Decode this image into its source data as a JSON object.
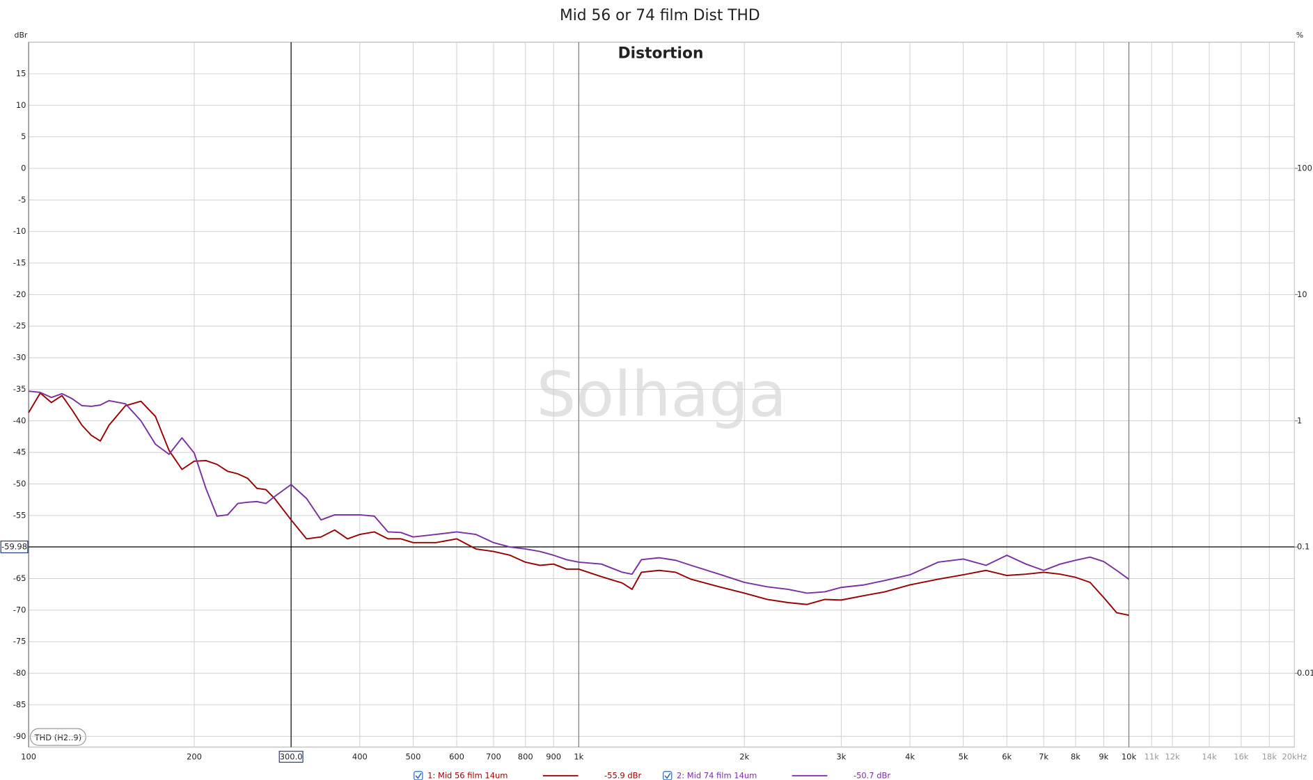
{
  "chart_data": {
    "type": "line",
    "title": "Mid 56 or 74 film Dist THD",
    "subtitle": "Distortion",
    "watermark": "Solhaga",
    "measurement_label": "THD (H2..9)",
    "ylabel": "dBr",
    "y2label": "%",
    "xscale": "log",
    "y2scale": "log",
    "grid": true,
    "xlim": [
      100,
      20000
    ],
    "ylim": [
      -91.7,
      20
    ],
    "y2lim": [
      0.0026,
      1000
    ],
    "xticks": [
      {
        "value": 100,
        "label": "100"
      },
      {
        "value": 200,
        "label": "200"
      },
      {
        "value": 400,
        "label": "400"
      },
      {
        "value": 500,
        "label": "500"
      },
      {
        "value": 600,
        "label": "600"
      },
      {
        "value": 700,
        "label": "700"
      },
      {
        "value": 800,
        "label": "800"
      },
      {
        "value": 900,
        "label": "900"
      },
      {
        "value": 1000,
        "label": "1k"
      },
      {
        "value": 2000,
        "label": "2k"
      },
      {
        "value": 3000,
        "label": "3k"
      },
      {
        "value": 4000,
        "label": "4k"
      },
      {
        "value": 5000,
        "label": "5k"
      },
      {
        "value": 6000,
        "label": "6k"
      },
      {
        "value": 7000,
        "label": "7k"
      },
      {
        "value": 8000,
        "label": "8k"
      },
      {
        "value": 9000,
        "label": "9k"
      },
      {
        "value": 10000,
        "label": "10k"
      },
      {
        "value": 11000,
        "label": "11k"
      },
      {
        "value": 12000,
        "label": "12k"
      },
      {
        "value": 14000,
        "label": "14k"
      },
      {
        "value": 16000,
        "label": "16k"
      },
      {
        "value": 18000,
        "label": "18k"
      },
      {
        "value": 20000,
        "label": "20kHz"
      }
    ],
    "yticks": [
      15,
      10,
      5,
      0,
      -5,
      -10,
      -15,
      -20,
      -25,
      -30,
      -35,
      -40,
      -45,
      -50,
      -55,
      -60,
      -65,
      -70,
      -75,
      -80,
      -85,
      -90
    ],
    "y2ticks": [
      100,
      10,
      1,
      0.1,
      0.01
    ],
    "cursor": {
      "x": {
        "value": 300,
        "label": "300.0"
      },
      "y": -59.98
    },
    "x": [
      100,
      105,
      110,
      115,
      120,
      125,
      130,
      135,
      140,
      150,
      160,
      170,
      180,
      190,
      200,
      210,
      220,
      230,
      240,
      250,
      260,
      270,
      280,
      300,
      320,
      340,
      360,
      380,
      400,
      425,
      450,
      475,
      500,
      550,
      600,
      650,
      700,
      750,
      800,
      850,
      900,
      950,
      1000,
      1100,
      1200,
      1250,
      1300,
      1400,
      1500,
      1600,
      1800,
      2000,
      2200,
      2400,
      2600,
      2800,
      3000,
      3300,
      3600,
      4000,
      4500,
      5000,
      5500,
      6000,
      6500,
      7000,
      7500,
      8000,
      8500,
      9000,
      9500,
      10000
    ],
    "series": [
      {
        "name": "1: Mid 56 film 14um",
        "color": "#990000",
        "cursor_value": -55.9,
        "cursor_value_label": "-55.9 dBr",
        "values": [
          -38.7,
          -35.6,
          -37.1,
          -36,
          -38.3,
          -40.7,
          -42.3,
          -43.2,
          -40.7,
          -37.6,
          -36.9,
          -39.3,
          -44.7,
          -47.7,
          -46.4,
          -46.3,
          -46.9,
          -48,
          -48.4,
          -49.1,
          -50.7,
          -50.9,
          -52.3,
          -55.7,
          -58.7,
          -58.4,
          -57.3,
          -58.7,
          -58,
          -57.6,
          -58.7,
          -58.7,
          -59.3,
          -59.3,
          -58.7,
          -60.3,
          -60.7,
          -61.3,
          -62.4,
          -62.9,
          -62.7,
          -63.5,
          -63.5,
          -64.7,
          -65.7,
          -66.7,
          -64,
          -63.7,
          -64,
          -65.1,
          -66.3,
          -67.3,
          -68.3,
          -68.8,
          -69.1,
          -68.3,
          -68.4,
          -67.7,
          -67.1,
          -66,
          -65.1,
          -64.4,
          -63.7,
          -64.5,
          -64.3,
          -64,
          -64.3,
          -64.8,
          -65.6,
          -68,
          -70.4,
          -70.8
        ]
      },
      {
        "name": "2: Mid 74 film 14um",
        "color": "#7b2fa0",
        "cursor_value": -50.7,
        "cursor_value_label": "-50.7 dBr",
        "values": [
          -35.3,
          -35.5,
          -36.3,
          -35.7,
          -36.5,
          -37.6,
          -37.7,
          -37.5,
          -36.8,
          -37.3,
          -40,
          -43.7,
          -45.3,
          -42.7,
          -45.1,
          -50.7,
          -55.1,
          -54.9,
          -53.1,
          -52.9,
          -52.8,
          -53.1,
          -52,
          -50.1,
          -52.3,
          -55.7,
          -54.9,
          -54.9,
          -54.9,
          -55.1,
          -57.6,
          -57.7,
          -58.4,
          -58,
          -57.6,
          -58,
          -59.3,
          -60,
          -60.3,
          -60.7,
          -61.3,
          -62,
          -62.4,
          -62.7,
          -64,
          -64.3,
          -62,
          -61.7,
          -62.1,
          -62.9,
          -64.3,
          -65.6,
          -66.3,
          -66.7,
          -67.3,
          -67.1,
          -66.4,
          -66,
          -65.3,
          -64.4,
          -62.4,
          -61.9,
          -62.9,
          -61.3,
          -62.7,
          -63.7,
          -62.7,
          -62.1,
          -61.6,
          -62.3,
          -63.7,
          -65.1
        ]
      }
    ]
  }
}
